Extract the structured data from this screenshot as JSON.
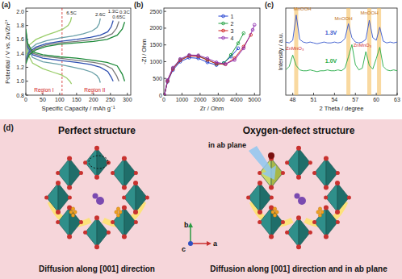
{
  "chart_data": [
    {
      "type": "line",
      "panel_label": "(a)",
      "x_label": "Specific Capacity / mAh g⁻¹",
      "y_label": "Potential / V vs. Zn/Zn²⁺",
      "xlim": [
        0,
        310
      ],
      "xticks": [
        0,
        50,
        100,
        150,
        200,
        250,
        300
      ],
      "ylim": [
        0.8,
        2.05
      ],
      "yticks": [
        0.8,
        {
          "value": 1.0,
          "label": "1.0"
        },
        1.2,
        1.4,
        1.6,
        1.8,
        {
          "value": 2.0,
          "label": "2.0"
        }
      ],
      "region_boundary": 107,
      "regions": [
        "Region I",
        "Region II"
      ],
      "series": [
        {
          "name": "6.5C",
          "color": "#9acd6a",
          "charge": {
            "x": [
              0,
              10,
              30,
              60,
              90,
              110,
              125,
              132,
              135
            ],
            "values": [
              1.38,
              1.52,
              1.6,
              1.66,
              1.71,
              1.75,
              1.8,
              1.86,
              1.92
            ]
          },
          "discharge": {
            "x": [
              0,
              5,
              20,
              50,
              80,
              105,
              120,
              130,
              135
            ],
            "values": [
              1.66,
              1.4,
              1.26,
              1.18,
              1.13,
              1.09,
              1.05,
              1.0,
              0.96
            ]
          }
        },
        {
          "name": "2.6C",
          "color": "#6aa0a8",
          "charge": {
            "x": [
              0,
              10,
              30,
              60,
              100,
              140,
              170,
              195,
              210,
              217,
              220
            ],
            "values": [
              1.33,
              1.45,
              1.53,
              1.58,
              1.62,
              1.65,
              1.68,
              1.72,
              1.77,
              1.83,
              1.9
            ]
          },
          "discharge": {
            "x": [
              0,
              5,
              20,
              50,
              100,
              140,
              170,
              195,
              210,
              217,
              220
            ],
            "values": [
              1.7,
              1.47,
              1.34,
              1.28,
              1.24,
              1.2,
              1.17,
              1.13,
              1.08,
              1.03,
              0.98
            ]
          }
        },
        {
          "name": "1.3C",
          "color": "#2e4fb0",
          "charge": {
            "x": [
              0,
              10,
              30,
              60,
              100,
              150,
              190,
              220,
              242,
              252,
              258
            ],
            "values": [
              1.3,
              1.42,
              1.49,
              1.54,
              1.57,
              1.6,
              1.63,
              1.66,
              1.71,
              1.78,
              1.87
            ]
          },
          "discharge": {
            "x": [
              0,
              5,
              20,
              50,
              100,
              150,
              190,
              220,
              242,
              252,
              258
            ],
            "values": [
              1.72,
              1.5,
              1.38,
              1.33,
              1.3,
              1.27,
              1.24,
              1.2,
              1.14,
              1.06,
              1.0
            ]
          }
        },
        {
          "name": "0.65C",
          "color": "#7a7a7a",
          "charge": {
            "x": [
              0,
              10,
              30,
              60,
              100,
              150,
              200,
              230,
              255,
              268,
              275
            ],
            "values": [
              1.28,
              1.4,
              1.47,
              1.52,
              1.55,
              1.57,
              1.6,
              1.63,
              1.68,
              1.76,
              1.86
            ]
          },
          "discharge": {
            "x": [
              0,
              5,
              20,
              50,
              100,
              150,
              200,
              230,
              255,
              268,
              275
            ],
            "values": [
              1.73,
              1.52,
              1.4,
              1.36,
              1.33,
              1.3,
              1.27,
              1.24,
              1.18,
              1.08,
              1.0
            ]
          }
        },
        {
          "name": "0.3C",
          "color": "#1e8a3a",
          "charge": {
            "x": [
              0,
              10,
              30,
              60,
              100,
              150,
              200,
              240,
              270,
              285,
              292
            ],
            "values": [
              1.25,
              1.38,
              1.45,
              1.5,
              1.53,
              1.55,
              1.57,
              1.6,
              1.66,
              1.75,
              1.85
            ]
          },
          "discharge": {
            "x": [
              0,
              5,
              20,
              50,
              100,
              150,
              200,
              240,
              270,
              285,
              292
            ],
            "values": [
              1.75,
              1.55,
              1.42,
              1.38,
              1.35,
              1.33,
              1.3,
              1.27,
              1.22,
              1.1,
              1.0
            ]
          }
        }
      ]
    },
    {
      "type": "scatter",
      "panel_label": "(b)",
      "marker": "circle",
      "line_style": "solid",
      "legend": "top",
      "x_label": "Zr / Ohm",
      "y_label": "-Zi / Ohm",
      "xlim": [
        0,
        5300
      ],
      "xticks": [
        0,
        1000,
        2000,
        3000,
        4000,
        5000
      ],
      "ylim": [
        0,
        2600
      ],
      "yticks": [
        0,
        500,
        1000,
        1500,
        2000,
        2500
      ],
      "series": [
        {
          "name": "1",
          "color": "#2040d0",
          "x": [
            30,
            200,
            500,
            900,
            1400,
            1900,
            2400,
            2900,
            3300,
            3700,
            4100
          ],
          "values": [
            0,
            400,
            750,
            1000,
            1120,
            1100,
            980,
            900,
            960,
            1150,
            1400
          ]
        },
        {
          "name": "2",
          "color": "#20a040",
          "x": [
            30,
            200,
            500,
            900,
            1400,
            1900,
            2400,
            2900,
            3300,
            3700,
            4100,
            4400
          ],
          "values": [
            0,
            430,
            800,
            1050,
            1180,
            1170,
            1060,
            930,
            950,
            1200,
            1550,
            1850
          ]
        },
        {
          "name": "3",
          "color": "#d02020",
          "x": [
            30,
            200,
            500,
            900,
            1400,
            1900,
            2400,
            2900,
            3400,
            3900,
            4400,
            4800
          ],
          "values": [
            0,
            420,
            780,
            1040,
            1170,
            1160,
            1050,
            940,
            920,
            1100,
            1450,
            1800
          ]
        },
        {
          "name": "4",
          "color": "#9030b0",
          "x": [
            30,
            200,
            500,
            900,
            1400,
            1900,
            2400,
            2900,
            3400,
            3900,
            4400,
            4900,
            5000
          ],
          "values": [
            0,
            450,
            820,
            1080,
            1200,
            1190,
            1100,
            980,
            930,
            1050,
            1400,
            1950,
            2100
          ]
        }
      ]
    },
    {
      "type": "line",
      "panel_label": "(c)",
      "tick_labels": "x",
      "x_label": "2 Theta / degree",
      "y_label": "Intensity / a.u.",
      "xlim": [
        47,
        63
      ],
      "xticks": [
        48,
        51,
        54,
        57,
        60,
        63
      ],
      "ylim": [
        0,
        100
      ],
      "highlights": [
        48.5,
        56.0,
        59.0,
        60.4
      ],
      "x": [
        47,
        47.5,
        48,
        48.5,
        49,
        49.5,
        50,
        50.5,
        51,
        51.5,
        52,
        52.5,
        53,
        53.5,
        54,
        54.5,
        55,
        55.5,
        56,
        56.5,
        57,
        57.5,
        58,
        58.5,
        59,
        59.5,
        60,
        60.5,
        61,
        61.5,
        62,
        62.5,
        63
      ],
      "series": [
        {
          "name": "1.3V",
          "color": "#3355cc",
          "values": [
            61,
            60,
            63,
            92,
            64,
            61,
            60,
            61,
            60,
            59,
            60,
            61,
            60,
            60,
            61,
            60,
            61,
            65,
            82,
            66,
            61,
            60,
            61,
            64,
            86,
            66,
            63,
            78,
            62,
            60,
            61,
            60,
            61
          ]
        },
        {
          "name": "1.0V",
          "color": "#22aa44",
          "values": [
            29,
            33,
            46,
            34,
            29,
            28,
            28,
            29,
            28,
            27,
            28,
            28,
            29,
            28,
            28,
            29,
            28,
            31,
            44,
            58,
            35,
            29,
            31,
            50,
            34,
            30,
            42,
            55,
            33,
            29,
            28,
            29,
            28
          ]
        }
      ],
      "annotations": [
        {
          "text": "ZnMnO₃",
          "x": 48.3,
          "y": 52,
          "color": "#d03030"
        },
        {
          "text": "MnOOH",
          "x": 49.4,
          "y": 97,
          "color": "#c07020"
        },
        {
          "text": "MnOOH",
          "x": 55.3,
          "y": 86,
          "color": "#c07020"
        },
        {
          "text": "MnOOH",
          "x": 59.0,
          "y": 93,
          "color": "#c07020"
        },
        {
          "text": "ZnMnO₃",
          "x": 58.0,
          "y": 56,
          "color": "#d03030"
        }
      ]
    }
  ],
  "diagram": {
    "panel_label": "(d)",
    "left": {
      "title": "Perfect structure",
      "caption": "Diffusion along [001] direction"
    },
    "right": {
      "title": "Oxygen-defect structure",
      "note": "in ab plane",
      "caption": "Diffusion along [001] direction and in ab plane"
    },
    "axes": [
      "b",
      "a",
      "c"
    ]
  }
}
